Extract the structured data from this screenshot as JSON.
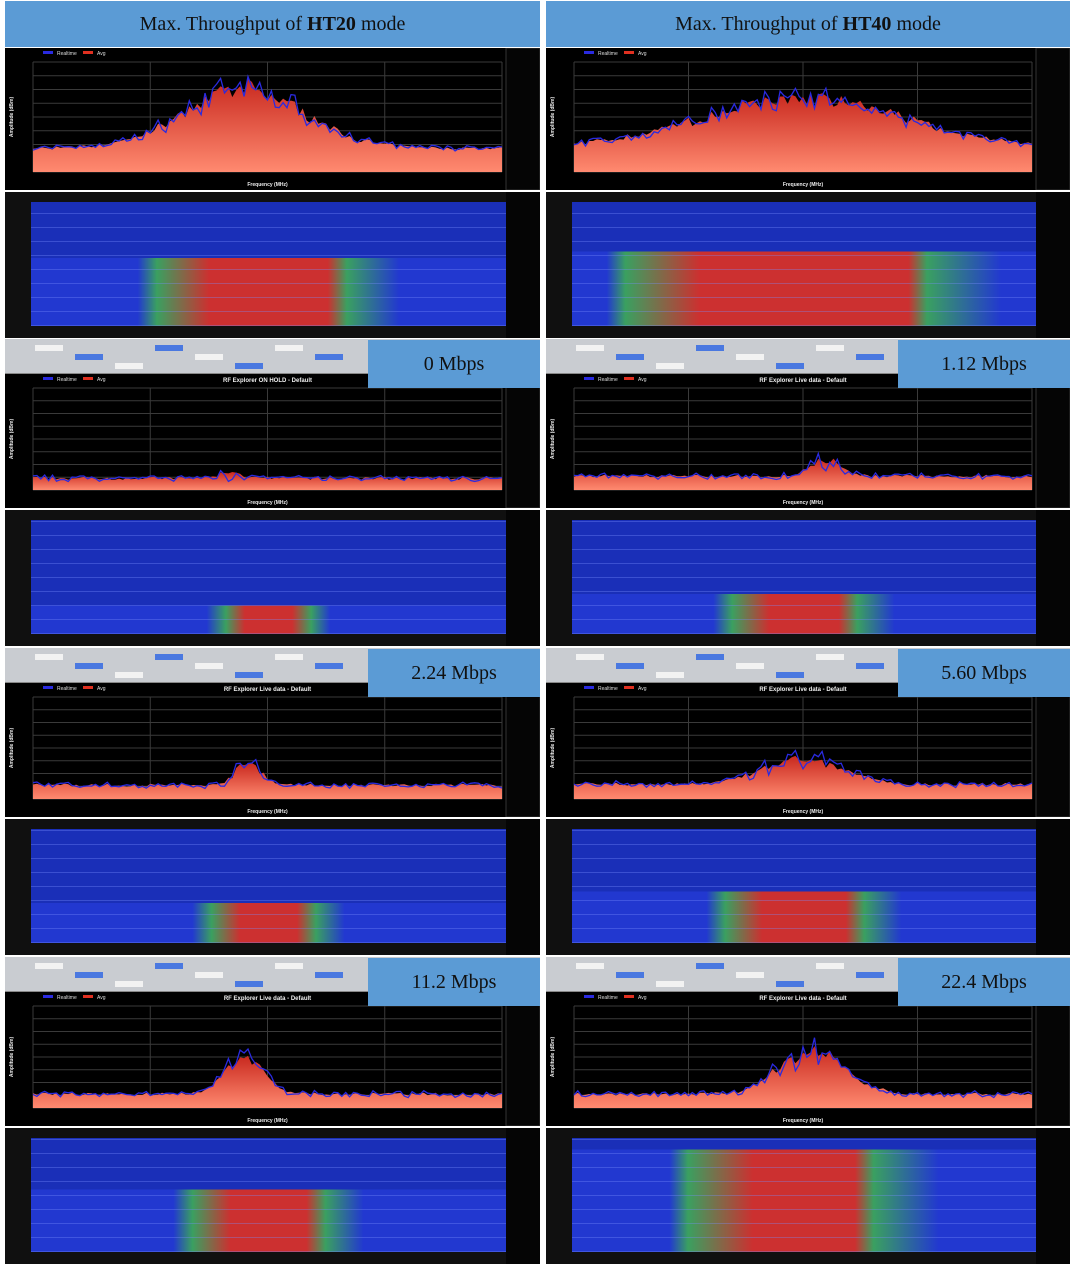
{
  "spectrum_x_label": "Frequency (MHz)",
  "spectrum_y_label": "Amplitude (dBm)",
  "legend": [
    "Realtime",
    "Avg"
  ],
  "columns": [
    {
      "header": {
        "prefix": "Max. Throughput of ",
        "bold": "HT20",
        "suffix": " mode"
      },
      "panels": [
        {
          "label": "0 Mbps",
          "title": "RF Explorer ON HOLD - Default"
        },
        {
          "label": "2.24 Mbps",
          "title": "RF Explorer Live data - Default"
        },
        {
          "label": "11.2 Mbps",
          "title": "RF Explorer Live data - Default"
        }
      ]
    },
    {
      "header": {
        "prefix": "Max. Throughput of ",
        "bold": "HT40",
        "suffix": " mode"
      },
      "panels": [
        {
          "label": "1.12 Mbps",
          "title": "RF Explorer Live data - Default"
        },
        {
          "label": "5.60 Mbps",
          "title": "RF Explorer Live data - Default"
        },
        {
          "label": "22.4 Mbps",
          "title": "RF Explorer Live data - Default"
        }
      ]
    }
  ]
}
